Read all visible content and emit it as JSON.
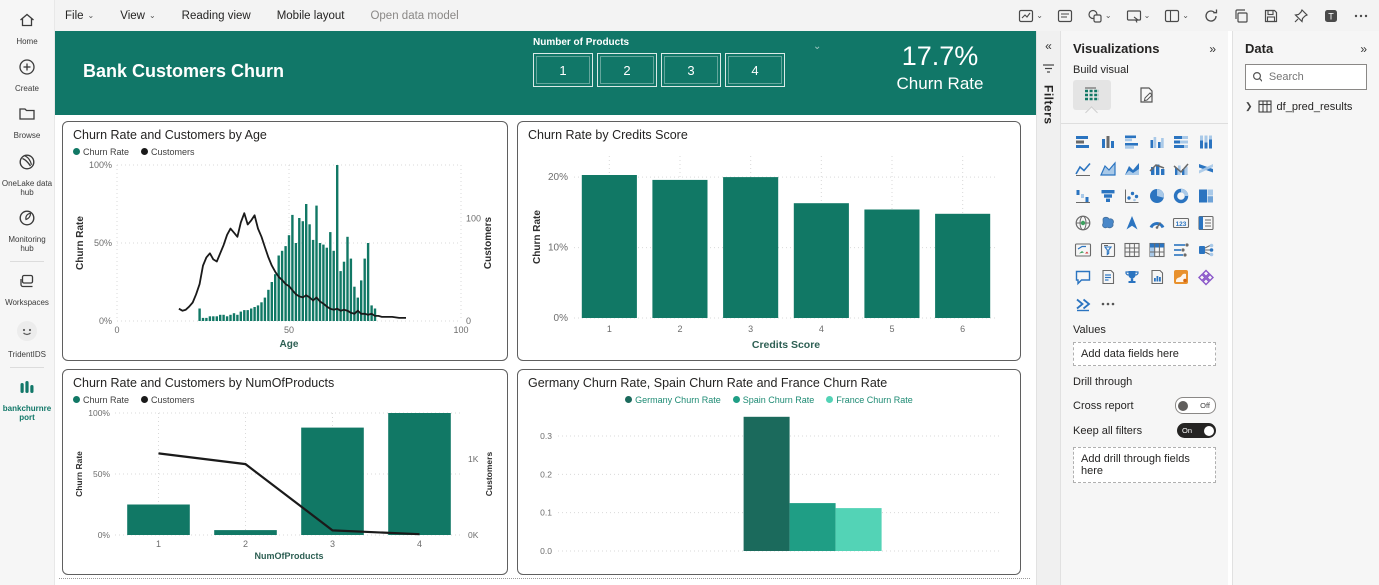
{
  "colors": {
    "accent": "#117768",
    "bar": "#117865",
    "line": "#1a1a1a",
    "germany": "#1b6a5c",
    "spain": "#1f9e85",
    "france": "#53d3b6",
    "icon_blue": "#2b74c0",
    "icon_gray": "#6a6a6a"
  },
  "menu": {
    "items": [
      {
        "label": "File",
        "chevron": true,
        "muted": false
      },
      {
        "label": "View",
        "chevron": true,
        "muted": false
      },
      {
        "label": "Reading view",
        "chevron": false,
        "muted": false
      },
      {
        "label": "Mobile layout",
        "chevron": false,
        "muted": false
      },
      {
        "label": "Open data model",
        "chevron": false,
        "muted": true
      }
    ]
  },
  "toolbar": {
    "icons": [
      {
        "name": "optimize-visuals-icon",
        "glyph": "frame",
        "chevron": true
      },
      {
        "name": "text-box-icon",
        "glyph": "textbox",
        "chevron": false
      },
      {
        "name": "shapes-icon",
        "glyph": "shapes",
        "chevron": true
      },
      {
        "name": "present-icon",
        "glyph": "present",
        "chevron": true
      },
      {
        "name": "page-view-icon",
        "glyph": "layout",
        "chevron": true
      },
      {
        "name": "refresh-icon",
        "glyph": "refresh",
        "chevron": false
      },
      {
        "name": "copy-icon",
        "glyph": "copy",
        "chevron": false
      },
      {
        "name": "save-icon",
        "glyph": "save",
        "chevron": false
      },
      {
        "name": "pin-icon",
        "glyph": "pin",
        "chevron": false
      },
      {
        "name": "teams-share-icon",
        "glyph": "teams",
        "chevron": false
      },
      {
        "name": "more-options-icon",
        "glyph": "dots",
        "chevron": false
      }
    ]
  },
  "nav": {
    "items": [
      {
        "label": "Home",
        "name": "home-icon",
        "glyph": "home",
        "divider_above": false,
        "accent": false
      },
      {
        "label": "Create",
        "name": "create-icon",
        "glyph": "plus",
        "divider_above": false,
        "accent": false
      },
      {
        "label": "Browse",
        "name": "browse-icon",
        "glyph": "folder",
        "divider_above": false,
        "accent": false
      },
      {
        "label": "OneLake data hub",
        "name": "onelake-data-hub-icon",
        "glyph": "lake",
        "divider_above": false,
        "accent": false
      },
      {
        "label": "Monitoring hub",
        "name": "monitoring-hub-icon",
        "glyph": "monitorhub",
        "divider_above": false,
        "accent": false
      },
      {
        "label": "Workspaces",
        "name": "workspaces-icon",
        "glyph": "stack",
        "divider_above": true,
        "accent": false
      },
      {
        "label": "TridentIDS",
        "name": "workspace-avatar-icon",
        "glyph": "avatar",
        "divider_above": false,
        "accent": false
      },
      {
        "label": "bankchurnreport",
        "name": "report-icon",
        "glyph": "report",
        "divider_above": true,
        "accent": true
      }
    ]
  },
  "banner": {
    "title": "Bank Customers Churn",
    "slicer_label": "Number of Products",
    "slicer_buttons": [
      "1",
      "2",
      "3",
      "4"
    ],
    "kpi_value": "17.7%",
    "kpi_label": "Churn Rate"
  },
  "filters_strip": {
    "label": "Filters"
  },
  "viz_panel": {
    "title": "Visualizations",
    "build_label": "Build visual",
    "values_label": "Values",
    "values_placeholder": "Add data fields here",
    "drill_label": "Drill through",
    "cross_report_label": "Cross report",
    "cross_report_state": "Off",
    "keep_filters_label": "Keep all filters",
    "keep_filters_state": "On",
    "drill_placeholder": "Add drill through fields here",
    "icons": [
      {
        "name": "stacked-bar-chart-icon",
        "glyph": "hbars"
      },
      {
        "name": "stacked-column-chart-icon",
        "glyph": "vbars"
      },
      {
        "name": "clustered-bar-chart-icon",
        "glyph": "hbars2"
      },
      {
        "name": "clustered-column-chart-icon",
        "glyph": "vbars2"
      },
      {
        "name": "100-stacked-bar-chart-icon",
        "glyph": "hbars100"
      },
      {
        "name": "100-stacked-column-chart-icon",
        "glyph": "vbars100"
      },
      {
        "name": "line-chart-icon",
        "glyph": "line"
      },
      {
        "name": "area-chart-icon",
        "glyph": "area"
      },
      {
        "name": "stacked-area-chart-icon",
        "glyph": "sarea"
      },
      {
        "name": "line-stacked-column-chart-icon",
        "glyph": "combo"
      },
      {
        "name": "line-clustered-column-chart-icon",
        "glyph": "combo2"
      },
      {
        "name": "ribbon-chart-icon",
        "glyph": "ribbon"
      },
      {
        "name": "waterfall-chart-icon",
        "glyph": "waterfall"
      },
      {
        "name": "funnel-chart-icon",
        "glyph": "funnel"
      },
      {
        "name": "scatter-chart-icon",
        "glyph": "scatter"
      },
      {
        "name": "pie-chart-icon",
        "glyph": "pie"
      },
      {
        "name": "donut-chart-icon",
        "glyph": "donut"
      },
      {
        "name": "treemap-icon",
        "glyph": "treemap"
      },
      {
        "name": "map-icon",
        "glyph": "globe"
      },
      {
        "name": "filled-map-icon",
        "glyph": "fillmap"
      },
      {
        "name": "azure-map-icon",
        "glyph": "navarrow"
      },
      {
        "name": "gauge-icon",
        "glyph": "gauge"
      },
      {
        "name": "card-icon",
        "glyph": "card123"
      },
      {
        "name": "multi-row-card-icon",
        "glyph": "rows"
      },
      {
        "name": "kpi-icon",
        "glyph": "kpi"
      },
      {
        "name": "slicer-icon",
        "glyph": "slicer"
      },
      {
        "name": "table-icon",
        "glyph": "grid"
      },
      {
        "name": "matrix-icon",
        "glyph": "gridhdr"
      },
      {
        "name": "decomposition-tree-icon",
        "glyph": "decomp"
      },
      {
        "name": "key-influencers-icon",
        "glyph": "keyinf"
      },
      {
        "name": "qa-icon",
        "glyph": "bubble"
      },
      {
        "name": "smart-narrative-icon",
        "glyph": "narrative"
      },
      {
        "name": "metrics-icon",
        "glyph": "trophy"
      },
      {
        "name": "paginated-report-icon",
        "glyph": "pagereport"
      },
      {
        "name": "arcgis-map-icon",
        "glyph": "arcgis"
      },
      {
        "name": "power-apps-icon",
        "glyph": "papps"
      },
      {
        "name": "power-automate-icon",
        "glyph": "pauto"
      },
      {
        "name": "more-visuals-icon",
        "glyph": "dots3"
      }
    ]
  },
  "data_panel": {
    "title": "Data",
    "search_placeholder": "Search",
    "items": [
      {
        "label": "df_pred_results"
      }
    ]
  },
  "chart_data": [
    {
      "type": "combo-bar-line",
      "title": "Churn Rate and Customers by Age",
      "legend": [
        {
          "label": "Churn Rate",
          "color": "#117865"
        },
        {
          "label": "Customers",
          "color": "#1a1a1a"
        }
      ],
      "xlabel": "Age",
      "ylabel_left": "Churn Rate",
      "ylabel_right": "Customers",
      "x_ticks": [
        0,
        50,
        100
      ],
      "y_left_ticks": [
        "0%",
        "50%",
        "100%"
      ],
      "y_right_ticks": [
        "0",
        "100"
      ],
      "x_max": 100,
      "y_left_max": 100,
      "y_right_max": 152,
      "bars": {
        "start_age": 24,
        "values": [
          8,
          2,
          2,
          3,
          3,
          3,
          4,
          4,
          3,
          4,
          5,
          4,
          6,
          7,
          7,
          8,
          9,
          10,
          12,
          15,
          20,
          25,
          30,
          42,
          45,
          48,
          55,
          68,
          50,
          66,
          64,
          75,
          62,
          52,
          74,
          50,
          49,
          47,
          57,
          45,
          100,
          32,
          38,
          54,
          40,
          22,
          15,
          26,
          40,
          50,
          10,
          8
        ]
      },
      "line_points": [
        [
          18,
          12
        ],
        [
          19,
          10
        ],
        [
          20,
          11
        ],
        [
          21,
          14
        ],
        [
          22,
          18
        ],
        [
          23,
          26
        ],
        [
          24,
          36
        ],
        [
          25,
          54
        ],
        [
          26,
          62
        ],
        [
          27,
          66
        ],
        [
          28,
          60
        ],
        [
          29,
          58
        ],
        [
          30,
          66
        ],
        [
          31,
          74
        ],
        [
          32,
          84
        ],
        [
          33,
          90
        ],
        [
          34,
          86
        ],
        [
          35,
          82
        ],
        [
          36,
          96
        ],
        [
          37,
          105
        ],
        [
          38,
          94
        ],
        [
          39,
          98
        ],
        [
          40,
          103
        ],
        [
          41,
          90
        ],
        [
          42,
          82
        ],
        [
          43,
          72
        ],
        [
          44,
          62
        ],
        [
          45,
          54
        ],
        [
          46,
          48
        ],
        [
          47,
          43
        ],
        [
          48,
          40
        ],
        [
          49,
          36
        ],
        [
          50,
          34
        ],
        [
          51,
          30
        ],
        [
          52,
          26
        ],
        [
          53,
          24
        ],
        [
          54,
          23
        ],
        [
          55,
          25
        ],
        [
          56,
          23
        ],
        [
          57,
          20
        ],
        [
          58,
          23
        ],
        [
          59,
          19
        ],
        [
          60,
          17
        ],
        [
          61,
          14
        ],
        [
          62,
          12
        ],
        [
          63,
          11
        ],
        [
          64,
          12
        ],
        [
          65,
          10
        ],
        [
          66,
          11
        ],
        [
          67,
          10
        ],
        [
          68,
          8
        ],
        [
          69,
          7
        ],
        [
          70,
          10
        ],
        [
          71,
          7
        ],
        [
          72,
          7
        ],
        [
          73,
          6
        ],
        [
          74,
          7
        ],
        [
          75,
          5
        ],
        [
          76,
          5
        ],
        [
          77,
          4
        ],
        [
          78,
          4
        ],
        [
          80,
          4
        ],
        [
          82,
          3
        ],
        [
          84,
          3
        ]
      ]
    },
    {
      "type": "bar",
      "title": "Churn Rate by Credits Score",
      "categories": [
        "1",
        "2",
        "3",
        "4",
        "5",
        "6"
      ],
      "values": [
        20.3,
        19.6,
        20.0,
        16.3,
        15.4,
        14.8
      ],
      "xlabel": "Credits Score",
      "ylabel": "Churn Rate",
      "y_ticks": [
        "0%",
        "10%",
        "20%"
      ],
      "ylim": [
        0,
        23
      ]
    },
    {
      "type": "combo-bar-line",
      "title": "Churn Rate and Customers by NumOfProducts",
      "legend": [
        {
          "label": "Churn Rate",
          "color": "#117865"
        },
        {
          "label": "Customers",
          "color": "#1a1a1a"
        }
      ],
      "categories": [
        "1",
        "2",
        "3",
        "4"
      ],
      "bar_values_pct": [
        25,
        4,
        88,
        100
      ],
      "line_values_k": [
        1.07,
        0.93,
        0.06,
        0.01
      ],
      "xlabel": "NumOfProducts",
      "ylabel_left": "Churn Rate",
      "ylabel_right": "Customers",
      "y_left_ticks": [
        "0%",
        "50%",
        "100%"
      ],
      "y_right_ticks": [
        "0K",
        "1K"
      ],
      "y_left_max": 100,
      "y_right_max": 1.6
    },
    {
      "type": "grouped-bar",
      "title": "Germany Churn Rate, Spain Churn Rate and France Churn Rate",
      "series": [
        {
          "name": "Germany Churn Rate",
          "value": 0.35,
          "color": "#1b6a5c"
        },
        {
          "name": "Spain Churn Rate",
          "value": 0.125,
          "color": "#1f9e85"
        },
        {
          "name": "France Churn Rate",
          "value": 0.112,
          "color": "#53d3b6"
        }
      ],
      "y_ticks": [
        "0.0",
        "0.1",
        "0.2",
        "0.3"
      ],
      "ylim": [
        0,
        0.36
      ]
    }
  ]
}
